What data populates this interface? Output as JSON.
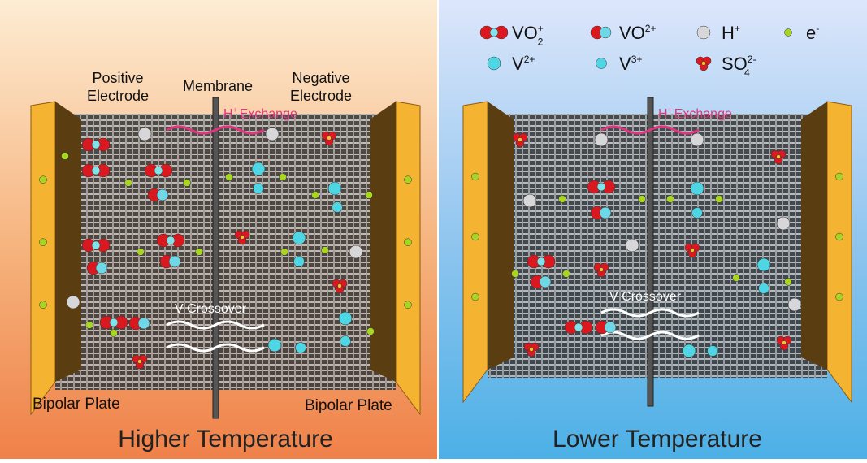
{
  "legend": [
    {
      "base": "VO",
      "sub": "2",
      "sup": "+"
    },
    {
      "base": "VO",
      "sup": "2+"
    },
    {
      "base": "H",
      "sup": "+"
    },
    {
      "base": "e",
      "sup": "-"
    },
    {
      "base": "V",
      "sup": "2+"
    },
    {
      "base": "V",
      "sup": "3+"
    },
    {
      "base": "SO",
      "sub": "4",
      "sup": "2-"
    }
  ],
  "panels": [
    {
      "title": "Higher Temperature",
      "positive_electrode": [
        "Positive",
        "Electrode"
      ],
      "membrane": "Membrane",
      "negative_electrode": [
        "Negative",
        "Electrode"
      ],
      "exchange": {
        "base": "H",
        "sup": "+",
        "text": "Exchange"
      },
      "crossover": "V Crossover",
      "bipolar_left": "Bipolar Plate",
      "bipolar_right": "Bipolar Plate"
    },
    {
      "title": "Lower Temperature",
      "exchange": {
        "base": "H",
        "sup": "+",
        "text": "Exchange"
      },
      "crossover": "V Crossover"
    }
  ]
}
